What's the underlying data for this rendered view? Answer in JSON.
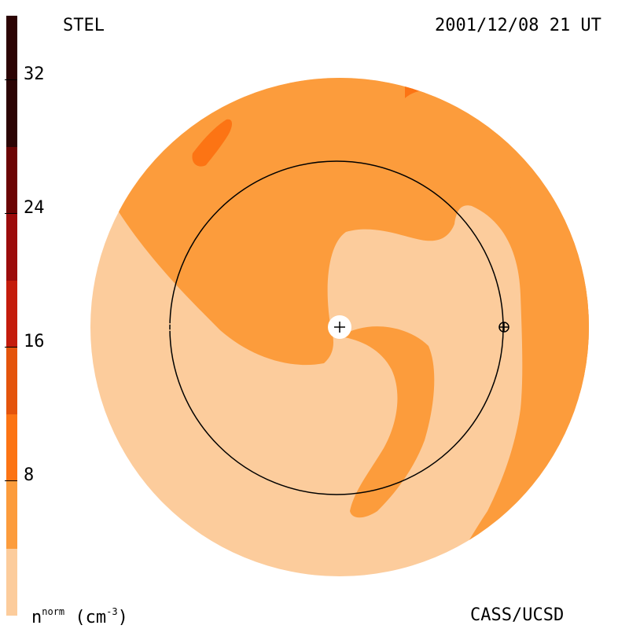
{
  "header": {
    "instrument": "STEL",
    "timestamp": "2001/12/08 21 UT"
  },
  "footer": {
    "credit": "CASS/UCSD",
    "units_base": "n",
    "units_sup": "norm",
    "units_unit": "(cm",
    "units_unit_sup": "-3",
    "units_close": ")"
  },
  "colorbar": {
    "tick_labels": [
      "32",
      "24",
      "16",
      "8"
    ],
    "tick_values": [
      32,
      24,
      16,
      8
    ],
    "range": [
      0,
      36
    ],
    "colors": [
      "#fccc9c",
      "#fc9c3c",
      "#fc7414",
      "#e4540c",
      "#c41c0c",
      "#9c0c0c",
      "#6c0404",
      "#2c0404"
    ]
  },
  "map": {
    "colors": {
      "low": "#fccc9c",
      "mid": "#fc9c3c",
      "high": "#fc7414"
    },
    "sun_icon": "plus-in-circle",
    "earth_icon": "earth-symbol"
  }
}
